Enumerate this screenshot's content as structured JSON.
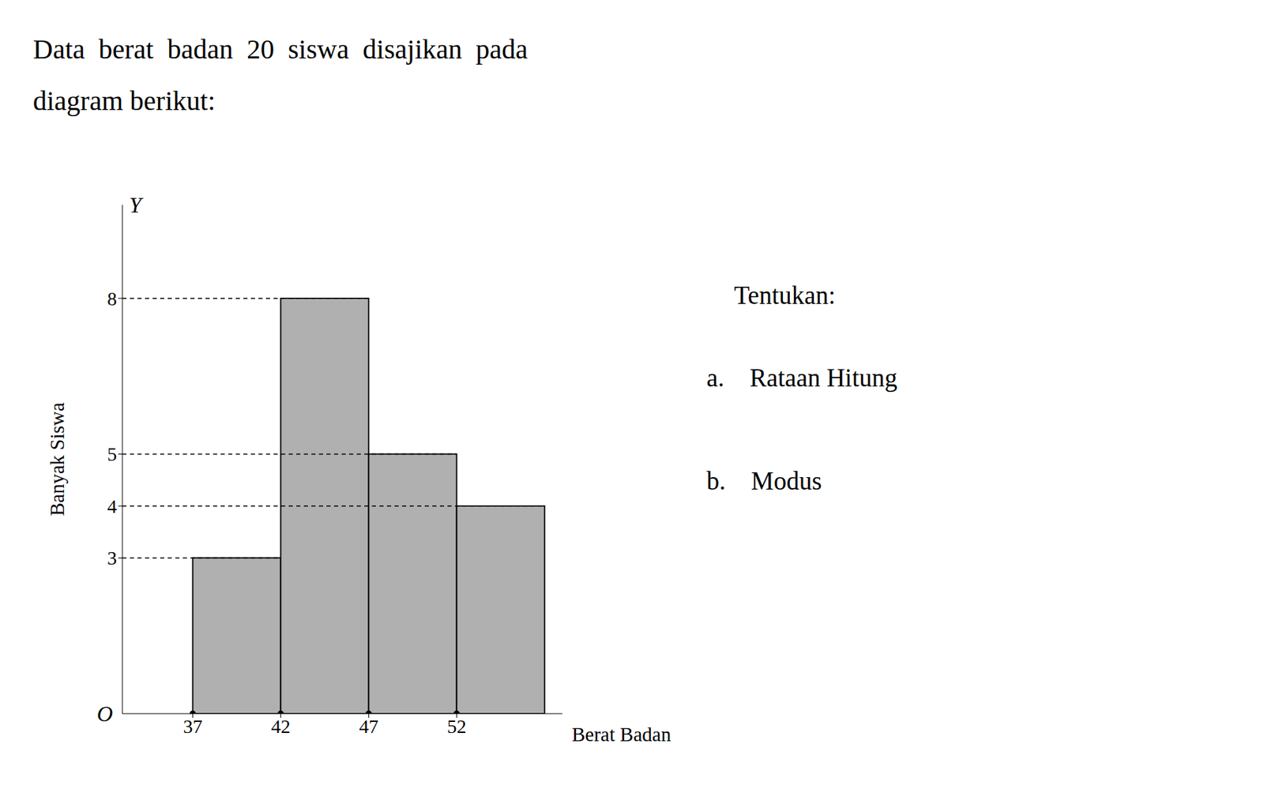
{
  "chart_data": {
    "type": "histogram",
    "title": "Data  berat  badan  20  siswa  disajikan  pada",
    "subtitle": "diagram berikut:",
    "bins": [
      37,
      42,
      47,
      52,
      57
    ],
    "values": [
      3,
      8,
      5,
      4
    ],
    "color": "#b0b0b0",
    "xlabel": "Berat Badan",
    "ylabel": "Banyak Siswa",
    "xlim": [
      33,
      58
    ],
    "ylim": [
      0,
      9.8
    ],
    "xticks": [
      37,
      42,
      47,
      52
    ],
    "yticks": [
      3,
      4,
      5,
      8
    ],
    "grid": false,
    "annotations": [
      "Y",
      "O",
      "Tentukan:",
      "a.    Rataan Hitung",
      "b.    Modus"
    ]
  }
}
